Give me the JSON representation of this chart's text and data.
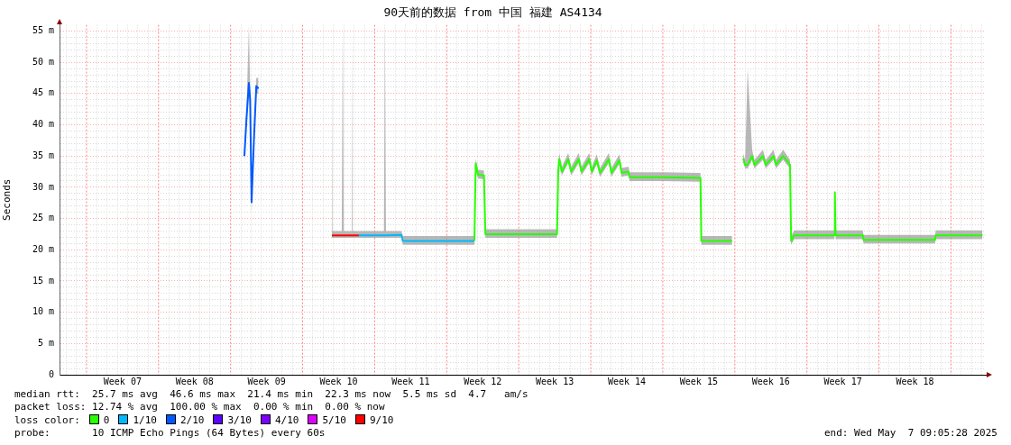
{
  "chart_data": {
    "type": "line",
    "title": "90天前的数据 from 中国 福建 AS4134",
    "ylabel": "Seconds",
    "legend_title": "loss color:",
    "legend": "bottom",
    "grid": true,
    "xlim": [
      "2025-02-06T09:05",
      "2025-05-07T09:05"
    ],
    "xticks": [
      {
        "value": "2025-02-07",
        "label": null
      },
      {
        "value": "2025-02-08",
        "label": null
      },
      {
        "value": "2025-02-10",
        "label": null
      },
      {
        "value": "2025-02-11",
        "label": null
      },
      {
        "value": "2025-02-12",
        "label": null
      },
      {
        "value": "2025-02-12T12:00",
        "label": "Week 07"
      },
      {
        "value": "2025-02-13",
        "label": null
      },
      {
        "value": "2025-02-14",
        "label": null
      },
      {
        "value": "2025-02-15",
        "label": null
      },
      {
        "value": "2025-02-17",
        "label": null
      },
      {
        "value": "2025-02-18",
        "label": null
      },
      {
        "value": "2025-02-19",
        "label": null
      },
      {
        "value": "2025-02-19T12:00",
        "label": "Week 08"
      },
      {
        "value": "2025-02-20",
        "label": null
      },
      {
        "value": "2025-02-21",
        "label": null
      },
      {
        "value": "2025-02-22",
        "label": null
      },
      {
        "value": "2025-02-24",
        "label": null
      },
      {
        "value": "2025-02-25",
        "label": null
      },
      {
        "value": "2025-02-26",
        "label": null
      },
      {
        "value": "2025-02-26T12:00",
        "label": "Week 09"
      },
      {
        "value": "2025-02-27",
        "label": null
      },
      {
        "value": "2025-02-28",
        "label": null
      },
      {
        "value": "2025-03-01",
        "label": null
      },
      {
        "value": "2025-03-03",
        "label": null
      },
      {
        "value": "2025-03-04",
        "label": null
      },
      {
        "value": "2025-03-05",
        "label": null
      },
      {
        "value": "2025-03-05T12:00",
        "label": "Week 10"
      },
      {
        "value": "2025-03-06",
        "label": null
      },
      {
        "value": "2025-03-07",
        "label": null
      },
      {
        "value": "2025-03-08",
        "label": null
      },
      {
        "value": "2025-03-10",
        "label": null
      },
      {
        "value": "2025-03-11",
        "label": null
      },
      {
        "value": "2025-03-12",
        "label": null
      },
      {
        "value": "2025-03-12T12:00",
        "label": "Week 11"
      },
      {
        "value": "2025-03-13",
        "label": null
      },
      {
        "value": "2025-03-14",
        "label": null
      },
      {
        "value": "2025-03-15",
        "label": null
      },
      {
        "value": "2025-03-17",
        "label": null
      },
      {
        "value": "2025-03-18",
        "label": null
      },
      {
        "value": "2025-03-19",
        "label": null
      },
      {
        "value": "2025-03-19T12:00",
        "label": "Week 12"
      },
      {
        "value": "2025-03-20",
        "label": null
      },
      {
        "value": "2025-03-21",
        "label": null
      },
      {
        "value": "2025-03-22",
        "label": null
      },
      {
        "value": "2025-03-24",
        "label": null
      },
      {
        "value": "2025-03-25",
        "label": null
      },
      {
        "value": "2025-03-26",
        "label": null
      },
      {
        "value": "2025-03-26T12:00",
        "label": "Week 13"
      },
      {
        "value": "2025-03-27",
        "label": null
      },
      {
        "value": "2025-03-28",
        "label": null
      },
      {
        "value": "2025-03-29",
        "label": null
      },
      {
        "value": "2025-03-31",
        "label": null
      },
      {
        "value": "2025-04-01",
        "label": null
      },
      {
        "value": "2025-04-02",
        "label": null
      },
      {
        "value": "2025-04-02T12:00",
        "label": "Week 14"
      },
      {
        "value": "2025-04-03",
        "label": null
      },
      {
        "value": "2025-04-04",
        "label": null
      },
      {
        "value": "2025-04-05",
        "label": null
      },
      {
        "value": "2025-04-07",
        "label": null
      },
      {
        "value": "2025-04-08",
        "label": null
      },
      {
        "value": "2025-04-09",
        "label": null
      },
      {
        "value": "2025-04-09T12:00",
        "label": "Week 15"
      },
      {
        "value": "2025-04-10",
        "label": null
      },
      {
        "value": "2025-04-11",
        "label": null
      },
      {
        "value": "2025-04-12",
        "label": null
      },
      {
        "value": "2025-04-14",
        "label": null
      },
      {
        "value": "2025-04-15",
        "label": null
      },
      {
        "value": "2025-04-16",
        "label": null
      },
      {
        "value": "2025-04-16T12:00",
        "label": "Week 16"
      },
      {
        "value": "2025-04-17",
        "label": null
      },
      {
        "value": "2025-04-18",
        "label": null
      },
      {
        "value": "2025-04-19",
        "label": null
      },
      {
        "value": "2025-04-21",
        "label": null
      },
      {
        "value": "2025-04-22",
        "label": null
      },
      {
        "value": "2025-04-23",
        "label": null
      },
      {
        "value": "2025-04-23T12:00",
        "label": "Week 17"
      },
      {
        "value": "2025-04-24",
        "label": null
      },
      {
        "value": "2025-04-25",
        "label": null
      },
      {
        "value": "2025-04-26",
        "label": null
      },
      {
        "value": "2025-04-28",
        "label": null
      },
      {
        "value": "2025-04-29",
        "label": null
      },
      {
        "value": "2025-04-30",
        "label": null
      },
      {
        "value": "2025-04-30T12:00",
        "label": "Week 18"
      },
      {
        "value": "2025-05-01",
        "label": null
      },
      {
        "value": "2025-05-02",
        "label": null
      },
      {
        "value": "2025-05-03",
        "label": null
      },
      {
        "value": "2025-05-05",
        "label": null
      },
      {
        "value": "2025-05-06",
        "label": null
      },
      {
        "value": "2025-05-07",
        "label": null
      }
    ],
    "ylim": [
      0,
      56
    ],
    "yticks": [
      0,
      {
        "value": 1,
        "label": null
      },
      {
        "value": 2,
        "label": null
      },
      {
        "value": 3,
        "label": null
      },
      {
        "value": 4,
        "label": null
      },
      {
        "value": 5,
        "label": "5 m"
      },
      {
        "value": 6,
        "label": null
      },
      {
        "value": 7,
        "label": null
      },
      {
        "value": 8,
        "label": null
      },
      {
        "value": 9,
        "label": null
      },
      {
        "value": 10,
        "label": "10 m"
      },
      {
        "value": 11,
        "label": null
      },
      {
        "value": 12,
        "label": null
      },
      {
        "value": 13,
        "label": null
      },
      {
        "value": 14,
        "label": null
      },
      {
        "value": 15,
        "label": "15 m"
      },
      {
        "value": 16,
        "label": null
      },
      {
        "value": 17,
        "label": null
      },
      {
        "value": 18,
        "label": null
      },
      {
        "value": 19,
        "label": null
      },
      {
        "value": 20,
        "label": "20 m"
      },
      {
        "value": 21,
        "label": null
      },
      {
        "value": 22,
        "label": null
      },
      {
        "value": 23,
        "label": null
      },
      {
        "value": 24,
        "label": null
      },
      {
        "value": 25,
        "label": "25 m"
      },
      {
        "value": 26,
        "label": null
      },
      {
        "value": 27,
        "label": null
      },
      {
        "value": 28,
        "label": null
      },
      {
        "value": 29,
        "label": null
      },
      {
        "value": 30,
        "label": "30 m"
      },
      {
        "value": 31,
        "label": null
      },
      {
        "value": 32,
        "label": null
      },
      {
        "value": 33,
        "label": null
      },
      {
        "value": 34,
        "label": null
      },
      {
        "value": 35,
        "label": "35 m"
      },
      {
        "value": 36,
        "label": null
      },
      {
        "value": 37,
        "label": null
      },
      {
        "value": 38,
        "label": null
      },
      {
        "value": 39,
        "label": null
      },
      {
        "value": 40,
        "label": "40 m"
      },
      {
        "value": 41,
        "label": null
      },
      {
        "value": 42,
        "label": null
      },
      {
        "value": 43,
        "label": null
      },
      {
        "value": 44,
        "label": null
      },
      {
        "value": 45,
        "label": "45 m"
      },
      {
        "value": 46,
        "label": null
      },
      {
        "value": 47,
        "label": null
      },
      {
        "value": 48,
        "label": null
      },
      {
        "value": 49,
        "label": null
      },
      {
        "value": 50,
        "label": "50 m"
      },
      {
        "value": 51,
        "label": null
      },
      {
        "value": 52,
        "label": null
      },
      {
        "value": 53,
        "label": null
      },
      {
        "value": 54,
        "label": null
      },
      {
        "value": 55,
        "label": "55 m"
      }
    ],
    "ref_lines": [
      {
        "axis": "x",
        "value": "2025-02-09",
        "color": "#ff8080",
        "line_style": "dotted"
      },
      {
        "axis": "x",
        "value": "2025-02-16",
        "color": "#ff8080",
        "line_style": "dotted"
      },
      {
        "axis": "x",
        "value": "2025-02-23",
        "color": "#ff8080",
        "line_style": "dotted"
      },
      {
        "axis": "x",
        "value": "2025-03-02",
        "color": "#ff8080",
        "line_style": "dotted"
      },
      {
        "axis": "x",
        "value": "2025-03-09",
        "color": "#ff8080",
        "line_style": "dotted"
      },
      {
        "axis": "x",
        "value": "2025-03-16",
        "color": "#ff8080",
        "line_style": "dotted"
      },
      {
        "axis": "x",
        "value": "2025-03-23",
        "color": "#ff8080",
        "line_style": "dotted"
      },
      {
        "axis": "x",
        "value": "2025-03-30",
        "color": "#ff8080",
        "line_style": "dotted"
      },
      {
        "axis": "x",
        "value": "2025-04-06",
        "color": "#ff8080",
        "line_style": "dotted"
      },
      {
        "axis": "x",
        "value": "2025-04-13",
        "color": "#ff8080",
        "line_style": "dotted"
      },
      {
        "axis": "x",
        "value": "2025-04-20",
        "color": "#ff8080",
        "line_style": "dotted"
      },
      {
        "axis": "x",
        "value": "2025-04-27",
        "color": "#ff8080",
        "line_style": "dotted"
      },
      {
        "axis": "x",
        "value": "2025-05-04",
        "color": "#ff8080",
        "line_style": "dotted"
      }
    ],
    "series": [
      {
        "name": "0",
        "color": "#26ff00",
        "x": [
          "2025-03-18T16:34",
          "2025-03-18T19:41",
          "2025-03-19T00:58",
          "2025-03-19T14:53",
          "2025-03-19T18:14",
          "2025-03-23T00:00",
          "2025-03-26T17:17",
          "2025-03-26T20:10",
          "2025-03-26T22:19",
          "2025-03-27T04:48",
          "2025-03-27T19:26",
          "2025-03-28T02:24",
          "2025-03-28T19:55",
          "2025-03-29T02:24",
          "2025-03-29T20:24",
          "2025-03-30T02:24",
          "2025-03-30T13:55",
          "2025-03-30T21:36",
          "2025-03-31T18:14",
          "2025-04-01T00:00",
          "2025-04-01T18:43",
          "2025-04-02T00:00",
          "2025-04-02T15:36",
          "2025-04-02T18:43",
          "2025-04-06T00:00",
          "2025-04-09T15:50",
          "2025-04-09T17:46",
          "2025-04-12T17:31",
          "2025-04-13T04:48",
          "2025-04-13T19:26",
          "2025-04-14T00:00",
          "2025-04-14T05:46",
          "2025-04-14T16:19",
          "2025-04-14T21:36",
          "2025-04-15T17:31",
          "2025-04-16T00:00",
          "2025-04-16T18:14",
          "2025-04-17T00:00",
          "2025-04-17T16:34",
          "2025-04-18T08:38",
          "2025-04-18T11:17",
          "2025-04-18T18:29",
          "2025-04-22T15:50",
          "2025-04-22T17:17",
          "2025-04-22T18:58",
          "2025-04-25T10:19",
          "2025-04-25T12:00",
          "2025-05-02T10:48",
          "2025-05-02T12:29",
          "2025-05-07T01:26"
        ],
        "values": [
          21.4,
          33.8,
          32.0,
          31.9,
          22.5,
          22.5,
          22.5,
          32.7,
          34.5,
          32.5,
          34.5,
          32.5,
          34.5,
          32.5,
          34.5,
          32.5,
          34.3,
          32.3,
          34.5,
          32.3,
          34.3,
          32.3,
          32.5,
          31.6,
          31.6,
          31.5,
          21.4,
          21.4,
          null,
          34.6,
          33.6,
          33.6,
          35.0,
          33.6,
          35.0,
          33.6,
          35.0,
          33.6,
          35.0,
          33.6,
          21.4,
          22.3,
          22.3,
          29.2,
          22.3,
          22.3,
          21.6,
          21.6,
          22.3,
          22.3
        ],
        "lower": [
          20.8,
          33.0,
          31.4,
          31.3,
          21.9,
          21.9,
          21.9,
          32.1,
          33.9,
          31.9,
          33.9,
          31.9,
          33.9,
          31.9,
          33.9,
          31.9,
          33.7,
          31.7,
          33.9,
          31.7,
          33.7,
          31.7,
          31.9,
          31.0,
          31.0,
          30.9,
          20.8,
          20.8,
          null,
          34.0,
          33.0,
          33.0,
          34.4,
          33.0,
          34.4,
          33.0,
          34.4,
          33.0,
          34.4,
          33.0,
          20.8,
          21.7,
          21.7,
          28.6,
          21.7,
          21.7,
          21.0,
          21.0,
          21.7,
          21.7
        ],
        "upper": [
          22.2,
          34.6,
          32.8,
          32.7,
          23.3,
          23.3,
          23.3,
          33.5,
          35.5,
          33.3,
          35.5,
          33.3,
          35.5,
          33.3,
          35.5,
          33.3,
          35.3,
          33.1,
          35.5,
          33.1,
          35.3,
          33.1,
          33.3,
          32.4,
          32.4,
          32.3,
          22.2,
          22.2,
          null,
          35.4,
          34.4,
          48.9,
          36.0,
          34.4,
          36.0,
          34.4,
          36.0,
          34.4,
          36.0,
          34.4,
          22.2,
          23.1,
          23.1,
          30.0,
          23.1,
          23.1,
          22.4,
          22.4,
          23.1,
          23.1
        ]
      },
      {
        "name": "1/10",
        "color": "#00b8ff",
        "x": [
          "2025-03-07T11:17",
          "2025-03-08T12:00",
          "2025-03-09T21:36",
          "2025-03-10T00:00",
          "2025-03-10T02:24",
          "2025-03-11T14:24",
          "2025-03-11T17:46",
          "2025-03-13T00:00",
          "2025-03-15T00:00",
          "2025-03-17T00:00",
          "2025-03-18T16:34"
        ],
        "values": [
          22.3,
          22.3,
          22.3,
          22.3,
          22.3,
          22.4,
          21.4,
          21.4,
          21.4,
          21.4,
          21.4
        ],
        "lower": [
          21.9,
          21.9,
          21.9,
          21.9,
          21.9,
          21.9,
          20.8,
          20.8,
          20.8,
          20.8,
          20.8
        ],
        "upper": [
          23.0,
          23.0,
          23.0,
          56,
          23.0,
          23.0,
          22.2,
          22.2,
          22.2,
          22.2,
          22.2
        ]
      },
      {
        "name": "2/10",
        "color": "#0059ff",
        "x": [
          "2025-02-24T08:10",
          "2025-02-24T13:12",
          "2025-02-24T18:43",
          "2025-02-24T21:36",
          "2025-02-25T00:58",
          "2025-02-25T06:29",
          "2025-02-25T12:00",
          "2025-02-25T17:02"
        ],
        "values": [
          35.0,
          41.1,
          46.7,
          44,
          27.6,
          37.7,
          46.2,
          45.8
        ],
        "lower": [
          34,
          40,
          45.5,
          42,
          26,
          36.5,
          45,
          45
        ],
        "upper": [
          36,
          42.5,
          56,
          46,
          29,
          39,
          47.5,
          47.5
        ]
      },
      {
        "name": "3/10",
        "color": "#5e00ff"
      },
      {
        "name": "4/10",
        "color": "#7e00ff"
      },
      {
        "name": "5/10",
        "color": "#dd00ff"
      },
      {
        "name": "9/10",
        "color": "#ff0000",
        "x": [
          "2025-03-04T20:10",
          "2025-03-04T21:36",
          "2025-03-05T19:12",
          "2025-03-05T21:36",
          "2025-03-06T00:00",
          "2025-03-06T16:48",
          "2025-03-06T18:29",
          "2025-03-06T20:24",
          "2025-03-07T11:17"
        ],
        "values": [
          22.3,
          22.3,
          22.3,
          22.3,
          22.3,
          22.3,
          22.3,
          22.3,
          22.3
        ],
        "lower": [
          21.9,
          21.9,
          21.9,
          21.9,
          21.9,
          21.9,
          21.9,
          21.9,
          21.9
        ],
        "upper": [
          56,
          23.0,
          23.0,
          56,
          23.0,
          23.0,
          56,
          23.0,
          23.0
        ]
      }
    ],
    "annotations": [
      "median rtt:  25.7 ms avg  46.6 ms max  21.4 ms min  22.3 ms now  5.5 ms sd  4.7   am/s",
      "packet loss: 12.74 % avg  100.00 % max  0.00 % min  0.00 % now",
      "probe:       10 ICMP Echo Pings (64 Bytes) every 60s",
      "end: Wed May  7 09:05:28 2025"
    ]
  }
}
